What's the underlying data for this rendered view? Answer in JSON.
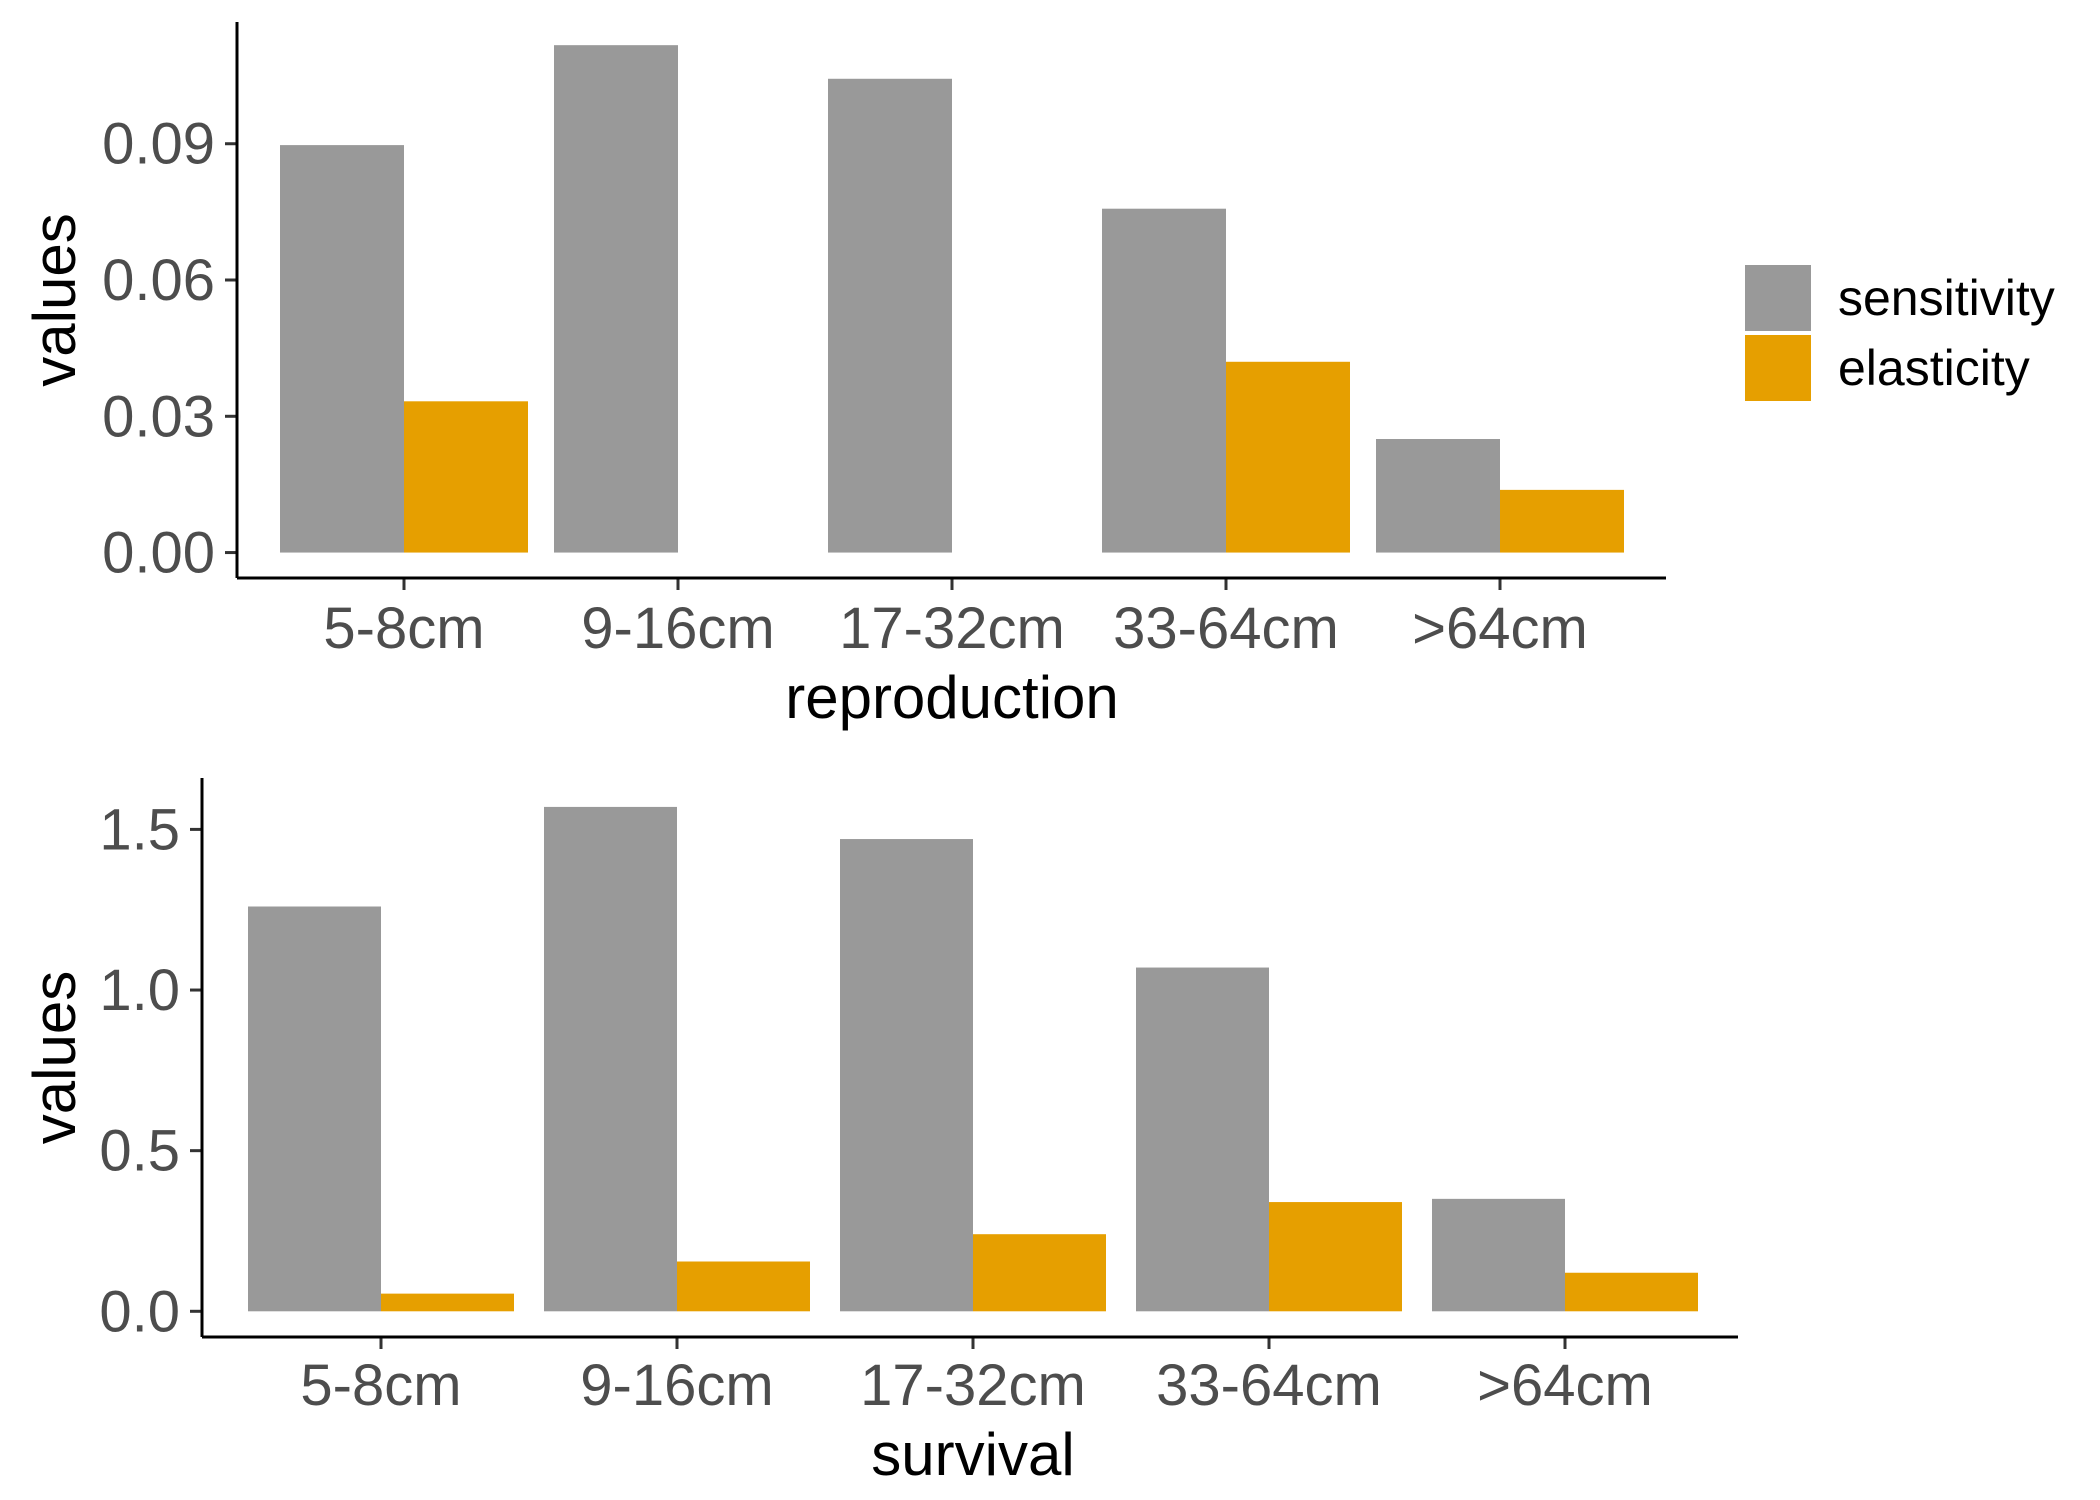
{
  "colors": {
    "sensitivity": "#999999",
    "elasticity": "#E69F00"
  },
  "legend": {
    "items": [
      {
        "key": "sensitivity",
        "label": "sensitivity"
      },
      {
        "key": "elasticity",
        "label": "elasticity"
      }
    ]
  },
  "chart_data": [
    {
      "type": "bar",
      "categories": [
        "5-8cm",
        "9-16cm",
        "17-32cm",
        "33-64cm",
        ">64cm"
      ],
      "series": [
        {
          "name": "sensitivity",
          "values": [
            0.0897,
            0.1117,
            0.1043,
            0.0757,
            0.025
          ]
        },
        {
          "name": "elasticity",
          "values": [
            0.0333,
            0.0,
            0.0,
            0.042,
            0.0138
          ]
        }
      ],
      "xlabel": "reproduction",
      "ylabel": "values",
      "yticks": [
        0.0,
        0.03,
        0.06,
        0.09
      ],
      "ytick_labels": [
        "0.00",
        "0.03",
        "0.06",
        "0.09"
      ],
      "ylim": [
        -0.0056,
        0.1168
      ],
      "grid": false,
      "legend_position": "right"
    },
    {
      "type": "bar",
      "categories": [
        "5-8cm",
        "9-16cm",
        "17-32cm",
        "33-64cm",
        ">64cm"
      ],
      "series": [
        {
          "name": "sensitivity",
          "values": [
            1.26,
            1.57,
            1.47,
            1.07,
            0.35
          ]
        },
        {
          "name": "elasticity",
          "values": [
            0.055,
            0.155,
            0.24,
            0.34,
            0.12
          ]
        }
      ],
      "xlabel": "survival",
      "ylabel": "values",
      "yticks": [
        0.0,
        0.5,
        1.0,
        1.5
      ],
      "ytick_labels": [
        "0.0",
        "0.5",
        "1.0",
        "1.5"
      ],
      "ylim": [
        -0.08,
        1.66
      ],
      "grid": false,
      "legend_position": "none"
    }
  ]
}
